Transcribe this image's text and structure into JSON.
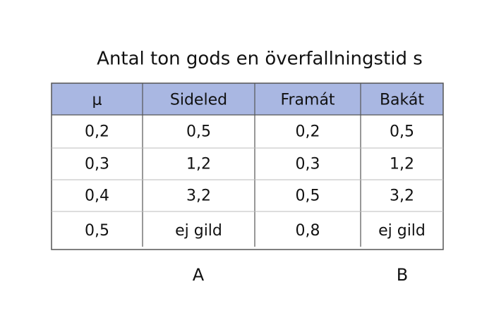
{
  "title": "Antal ton gods en överfallningstid s",
  "table": {
    "header": [
      "μ",
      "Sideled",
      "Framát",
      "Bakát"
    ],
    "rows": [
      [
        "0,2",
        "0,5",
        "0,2",
        "0,5"
      ],
      [
        "0,3",
        "1,2",
        "0,3",
        "1,2"
      ],
      [
        "0,4",
        "3,2",
        "0,5",
        "3,2"
      ],
      [
        "0,5",
        "ej gild",
        "0,8",
        "ej gild"
      ]
    ]
  },
  "footer": {
    "labels": [
      "A",
      "B"
    ]
  }
}
